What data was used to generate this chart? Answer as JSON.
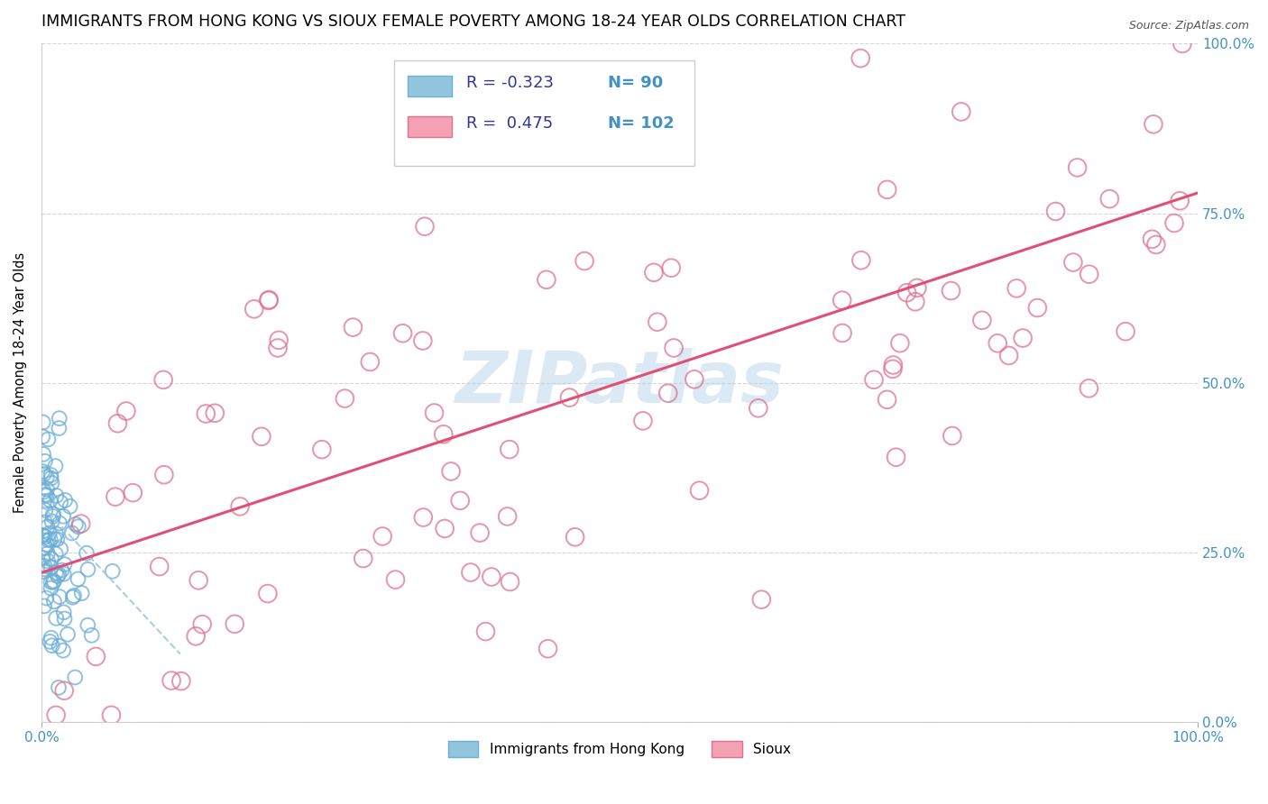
{
  "title": "IMMIGRANTS FROM HONG KONG VS SIOUX FEMALE POVERTY AMONG 18-24 YEAR OLDS CORRELATION CHART",
  "source": "Source: ZipAtlas.com",
  "ylabel": "Female Poverty Among 18-24 Year Olds",
  "xlim": [
    0,
    1
  ],
  "ylim": [
    0,
    1
  ],
  "xtick_labels": [
    "0.0%",
    "100.0%"
  ],
  "ytick_labels": [
    "0.0%",
    "25.0%",
    "50.0%",
    "75.0%",
    "100.0%"
  ],
  "ytick_positions": [
    0,
    0.25,
    0.5,
    0.75,
    1.0
  ],
  "watermark": "ZIPatlas",
  "legend_blue_r": "-0.323",
  "legend_blue_n": "90",
  "legend_pink_r": "0.475",
  "legend_pink_n": "102",
  "legend_label_blue": "Immigrants from Hong Kong",
  "legend_label_pink": "Sioux",
  "blue_color": "#92c5de",
  "blue_edge_color": "#6baed6",
  "pink_color": "#f4a0b5",
  "pink_edge_color": "#e07090",
  "blue_line_color": "#9ecae1",
  "pink_line_color": "#e05075",
  "background_color": "#ffffff",
  "grid_color": "#cccccc",
  "title_fontsize": 12.5,
  "tick_color": "#4292c6",
  "blue_seed": 12345,
  "pink_seed": 67890,
  "n_blue": 90,
  "n_pink": 102,
  "blue_line_x0": 0.0,
  "blue_line_x1": 0.12,
  "blue_line_y0": 0.32,
  "blue_line_y1": 0.1,
  "pink_line_x0": 0.0,
  "pink_line_x1": 1.0,
  "pink_line_y0": 0.22,
  "pink_line_y1": 0.78
}
